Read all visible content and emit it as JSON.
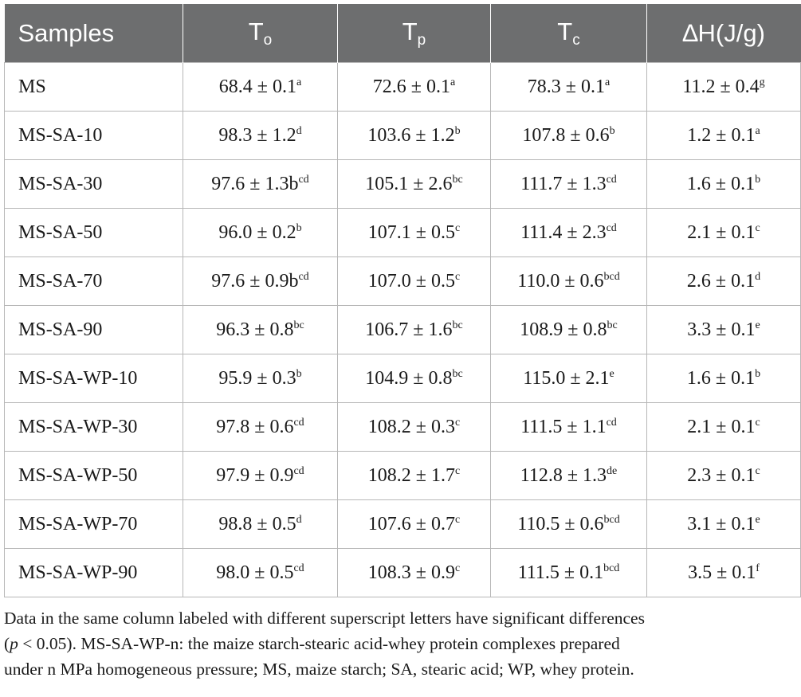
{
  "headers": {
    "samples": "Samples",
    "to_main": "T",
    "to_sub": "o",
    "tp_main": "T",
    "tp_sub": "p",
    "tc_main": "T",
    "tc_sub": "c",
    "dh": "∆H(J/g)"
  },
  "rows": [
    {
      "sample": "MS",
      "to": "68.4 ± 0.1",
      "to_sup": "a",
      "tp": "72.6 ± 0.1",
      "tp_sup": "a",
      "tc": "78.3 ± 0.1",
      "tc_sup": "a",
      "dh": "11.2 ± 0.4",
      "dh_sup": "g"
    },
    {
      "sample": "MS-SA-10",
      "to": "98.3 ± 1.2",
      "to_sup": "d",
      "tp": "103.6 ± 1.2",
      "tp_sup": "b",
      "tc": "107.8 ± 0.6",
      "tc_sup": "b",
      "dh": "1.2 ± 0.1",
      "dh_sup": "a"
    },
    {
      "sample": "MS-SA-30",
      "to": "97.6 ± 1.3b",
      "to_sup": "cd",
      "tp": "105.1 ± 2.6",
      "tp_sup": "bc",
      "tc": "111.7 ± 1.3",
      "tc_sup": "cd",
      "dh": "1.6 ± 0.1",
      "dh_sup": "b"
    },
    {
      "sample": "MS-SA-50",
      "to": "96.0 ± 0.2",
      "to_sup": "b",
      "tp": "107.1 ± 0.5",
      "tp_sup": "c",
      "tc": "111.4 ± 2.3",
      "tc_sup": "cd",
      "dh": "2.1 ± 0.1",
      "dh_sup": "c"
    },
    {
      "sample": "MS-SA-70",
      "to": "97.6 ± 0.9b",
      "to_sup": "cd",
      "tp": "107.0 ± 0.5",
      "tp_sup": "c",
      "tc": "110.0 ± 0.6",
      "tc_sup": "bcd",
      "dh": "2.6 ± 0.1",
      "dh_sup": "d"
    },
    {
      "sample": "MS-SA-90",
      "to": "96.3 ± 0.8",
      "to_sup": "bc",
      "tp": "106.7 ± 1.6",
      "tp_sup": "bc",
      "tc": "108.9 ± 0.8",
      "tc_sup": "bc",
      "dh": "3.3 ± 0.1",
      "dh_sup": "e"
    },
    {
      "sample": "MS-SA-WP-10",
      "to": "95.9 ± 0.3",
      "to_sup": "b",
      "tp": "104.9 ± 0.8",
      "tp_sup": "bc",
      "tc": "115.0 ± 2.1",
      "tc_sup": "e",
      "dh": "1.6 ± 0.1",
      "dh_sup": "b"
    },
    {
      "sample": "MS-SA-WP-30",
      "to": "97.8 ± 0.6",
      "to_sup": "cd",
      "tp": "108.2 ± 0.3",
      "tp_sup": "c",
      "tc": "111.5 ± 1.1",
      "tc_sup": "cd",
      "dh": "2.1 ± 0.1",
      "dh_sup": "c"
    },
    {
      "sample": "MS-SA-WP-50",
      "to": "97.9 ± 0.9",
      "to_sup": "cd",
      "tp": "108.2 ± 1.7",
      "tp_sup": "c",
      "tc": "112.8 ± 1.3",
      "tc_sup": "de",
      "dh": "2.3 ± 0.1",
      "dh_sup": "c"
    },
    {
      "sample": "MS-SA-WP-70",
      "to": "98.8 ± 0.5",
      "to_sup": "d",
      "tp": "107.6 ± 0.7",
      "tp_sup": "c",
      "tc": "110.5 ± 0.6",
      "tc_sup": "bcd",
      "dh": "3.1 ± 0.1",
      "dh_sup": "e"
    },
    {
      "sample": "MS-SA-WP-90",
      "to": "98.0 ± 0.5",
      "to_sup": "cd",
      "tp": "108.3 ± 0.9",
      "tp_sup": "c",
      "tc": "111.5 ± 0.1",
      "tc_sup": "bcd",
      "dh": "3.5 ± 0.1",
      "dh_sup": "f"
    }
  ],
  "footnote": {
    "line1": "Data in the same column labeled with different superscript letters have significant differences",
    "line2_p": "p",
    "line2_rest": " < 0.05). MS-SA-WP-n: the maize starch-stearic acid-whey protein complexes prepared",
    "line3": "under n MPa homogeneous pressure; MS, maize starch; SA, stearic acid; WP, whey protein."
  },
  "colors": {
    "header_bg": "#6d6e6f",
    "header_text": "#ffffff",
    "grid": "#b7b7b7",
    "text": "#1a1a1a"
  }
}
